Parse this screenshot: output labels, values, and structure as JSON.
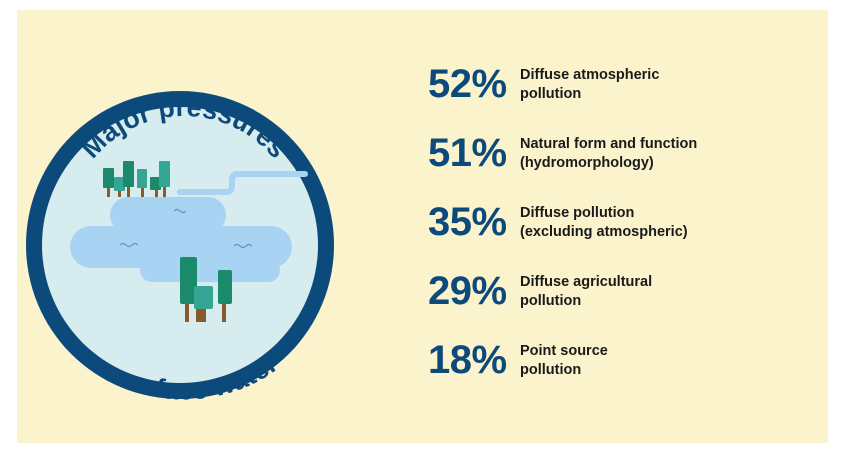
{
  "title": {
    "line1": "Major pressures",
    "line2": "on surface water"
  },
  "colors": {
    "background": "#fbf3cc",
    "ring": "#0d4a7c",
    "circle_fill": "#d6ecef",
    "water": "#a9d3f2",
    "tree_dark": "#1b8a6b",
    "tree_light": "#35a594",
    "trunk": "#8a5a2b",
    "text_dark": "#1a1a1a"
  },
  "pressures": [
    {
      "percent": "52%",
      "line1": "Diffuse atmospheric",
      "line2": "pollution"
    },
    {
      "percent": "51%",
      "line1": "Natural form and function",
      "line2": "(hydromorphology)"
    },
    {
      "percent": "35%",
      "line1": "Diffuse pollution",
      "line2": "(excluding atmospheric)"
    },
    {
      "percent": "29%",
      "line1": "Diffuse agricultural",
      "line2": "pollution"
    },
    {
      "percent": "18%",
      "line1": "Point source",
      "line2": "pollution"
    }
  ]
}
